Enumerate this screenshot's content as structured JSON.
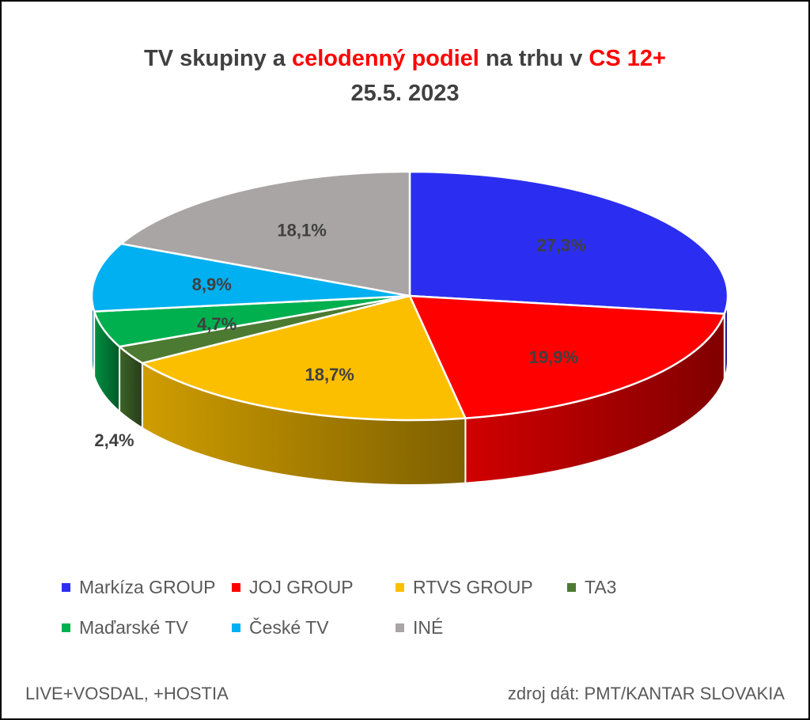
{
  "title": {
    "line1_a": "TV skupiny a ",
    "line1_b": "celodenný podiel",
    "line1_c": " na trhu v ",
    "line1_d": "CS 12+",
    "line2": "25.5. 2023"
  },
  "footer": {
    "left": "LIVE+VOSDAL, +HOSTIA",
    "right": "zdroj dát: PMT/KANTAR SLOVAKIA"
  },
  "chart_data": {
    "type": "pie",
    "style": "3d",
    "legend_position": "bottom",
    "categories": [
      "Markíza GROUP",
      "JOJ GROUP",
      "RTVS GROUP",
      "TA3",
      "Maďarské  TV",
      "České  TV",
      "INÉ"
    ],
    "values": [
      27.3,
      19.9,
      18.7,
      2.4,
      4.7,
      8.9,
      18.1
    ],
    "labels": [
      "27,3%",
      "19,9%",
      "18,7%",
      "2,4%",
      "4,7%",
      "8,9%",
      "18,1%"
    ],
    "colors": [
      "#2b2ef0",
      "#ff0000",
      "#fcbf00",
      "#4c7a32",
      "#00b04f",
      "#00b0f0",
      "#aaa5a5"
    ]
  }
}
